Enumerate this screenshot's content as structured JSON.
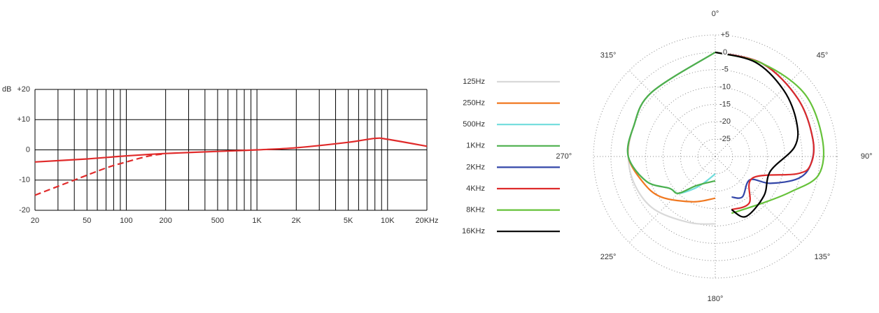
{
  "chart_data": [
    {
      "type": "line",
      "ylabel": "dB",
      "xscale": "log",
      "xlim": [
        20,
        20000
      ],
      "ylim": [
        -20,
        20
      ],
      "xticks": [
        20,
        50,
        100,
        200,
        500,
        {
          "value": 1000,
          "label": "1K"
        },
        {
          "value": 2000,
          "label": "2K"
        },
        {
          "value": 5000,
          "label": "5K"
        },
        {
          "value": 10000,
          "label": "10K"
        },
        {
          "value": 20000,
          "label": "20KHz"
        }
      ],
      "xminorticks": [
        30,
        40,
        60,
        70,
        80,
        90,
        300,
        400,
        600,
        700,
        800,
        900,
        3000,
        4000,
        6000,
        7000,
        8000,
        9000
      ],
      "yticks": [
        {
          "value": 20,
          "label": "+20"
        },
        {
          "value": 10,
          "label": "+10"
        },
        0,
        -10,
        -20
      ],
      "grid": true,
      "series": [
        {
          "color": "#e02b2b",
          "dash": false,
          "x": [
            20,
            50,
            100,
            200,
            500,
            1000,
            2000,
            5000,
            8000,
            10000,
            20000
          ],
          "values": [
            -4,
            -3,
            -2,
            -1.2,
            -0.5,
            0,
            0.7,
            2.5,
            3.8,
            3.5,
            1.2
          ]
        },
        {
          "color": "#e02b2b",
          "dash": true,
          "x": [
            20,
            40,
            70,
            100,
            150,
            200
          ],
          "values": [
            -15,
            -10,
            -6,
            -4,
            -2,
            -1.3
          ]
        }
      ]
    },
    {
      "type": "polar",
      "rlim": [
        -30,
        5
      ],
      "rticks": [
        {
          "value": 5,
          "label": "+5"
        },
        0,
        -5,
        -10,
        -15,
        -20,
        -25
      ],
      "thetaticks": [
        {
          "value": 0,
          "label": "0°"
        },
        {
          "value": 45,
          "label": "45°"
        },
        {
          "value": 90,
          "label": "90°"
        },
        {
          "value": 135,
          "label": "135°"
        },
        {
          "value": 180,
          "label": "180°"
        },
        {
          "value": 225,
          "label": "225°"
        },
        {
          "value": 270,
          "label": "270°"
        },
        {
          "value": 315,
          "label": "315°"
        }
      ],
      "series": [
        {
          "name": "125Hz",
          "color": "#d9d9d9",
          "theta": [
            360,
            315,
            290,
            270,
            250,
            229,
            201,
            180
          ],
          "values": [
            0,
            -4,
            -5,
            -5,
            -5.5,
            -6.8,
            -9.6,
            -10.6
          ]
        },
        {
          "name": "250Hz",
          "color": "#f07820",
          "theta": [
            360,
            315,
            290,
            270,
            250,
            233,
            206,
            180
          ],
          "values": [
            0,
            -4,
            -5,
            -5,
            -8,
            -10.6,
            -15.5,
            -18
          ]
        },
        {
          "name": "500Hz",
          "color": "#6fdcdc",
          "theta": [
            360,
            315,
            290,
            270,
            250,
            235,
            225,
            213,
            202,
            180
          ],
          "values": [
            0,
            -4,
            -5,
            -5,
            -9,
            -14,
            -15,
            -19,
            -22,
            -25
          ]
        },
        {
          "name": "1KHz",
          "color": "#4db04d",
          "theta": [
            360,
            315,
            290,
            270,
            250,
            235,
            225,
            213,
            180
          ],
          "values": [
            0,
            -4,
            -5,
            -5,
            -9,
            -14,
            -15,
            -20,
            -23
          ]
        },
        {
          "name": "2KHz",
          "color": "#3346a8",
          "theta": [
            0,
            27,
            55,
            80,
            95,
            105,
            116,
            124,
            146,
            158
          ],
          "values": [
            0,
            0,
            -1,
            -1.5,
            -2.5,
            -5.4,
            -12.4,
            -18,
            -16,
            -17.4
          ]
        },
        {
          "name": "4KHz",
          "color": "#dd2a2a",
          "theta": [
            0,
            27,
            55,
            80,
            95,
            102,
            120,
            144,
            163
          ],
          "values": [
            0,
            0,
            -1,
            -1.5,
            -2.5,
            -6,
            -17.6,
            -13.4,
            -14
          ]
        },
        {
          "name": "8KHz",
          "color": "#66c23a",
          "theta": [
            0,
            27,
            55,
            81,
            100,
            115,
            134,
            164
          ],
          "values": [
            0,
            0,
            1.4,
            1.2,
            0.2,
            -6,
            -10.8,
            -13
          ]
        },
        {
          "name": "16KHz",
          "color": "#000000",
          "theta": [
            0,
            23,
            46,
            67,
            83,
            105,
            129,
            153,
            163
          ],
          "values": [
            0,
            -0.5,
            -2.6,
            -4.6,
            -7,
            -13.6,
            -12,
            -10.6,
            -14
          ]
        }
      ]
    }
  ]
}
